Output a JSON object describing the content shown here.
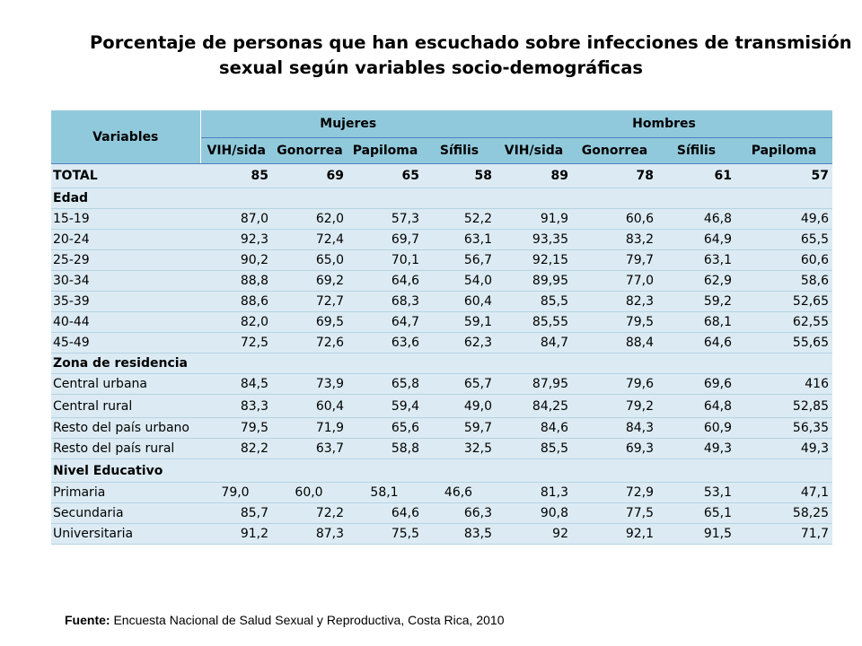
{
  "title": {
    "line1": "Porcentaje de personas que han escuchado sobre infecciones de transmisión",
    "line2": "sexual según variables socio-demográficas"
  },
  "table": {
    "variables_header": "Variables",
    "group_headers": [
      "Mujeres",
      "Hombres"
    ],
    "columns": [
      "VIH/sida",
      "Gonorrea",
      "Papiloma",
      "Sífilis",
      "VIH/sida",
      "Gonorrea",
      "Sífilis",
      "Papiloma"
    ],
    "total": {
      "label": "TOTAL",
      "values": [
        "85",
        "69",
        "65",
        "58",
        "89",
        "78",
        "61",
        "57"
      ]
    },
    "sections": [
      {
        "heading": "Edad",
        "rows": [
          {
            "label": "15-19",
            "values": [
              "87,0",
              "62,0",
              "57,3",
              "52,2",
              "91,9",
              "60,6",
              "46,8",
              "49,6"
            ]
          },
          {
            "label": "20-24",
            "values": [
              "92,3",
              "72,4",
              "69,7",
              "63,1",
              "93,35",
              "83,2",
              "64,9",
              "65,5"
            ]
          },
          {
            "label": "25-29",
            "values": [
              "90,2",
              "65,0",
              "70,1",
              "56,7",
              "92,15",
              "79,7",
              "63,1",
              "60,6"
            ]
          },
          {
            "label": "30-34",
            "values": [
              "88,8",
              "69,2",
              "64,6",
              "54,0",
              "89,95",
              "77,0",
              "62,9",
              "58,6"
            ]
          },
          {
            "label": "35-39",
            "values": [
              "88,6",
              "72,7",
              "68,3",
              "60,4",
              "85,5",
              "82,3",
              "59,2",
              "52,65"
            ]
          },
          {
            "label": "40-44",
            "values": [
              "82,0",
              "69,5",
              "64,7",
              "59,1",
              "85,55",
              "79,5",
              "68,1",
              "62,55"
            ]
          },
          {
            "label": "45-49",
            "values": [
              "72,5",
              "72,6",
              "63,6",
              "62,3",
              "84,7",
              "88,4",
              "64,6",
              "55,65"
            ]
          }
        ]
      },
      {
        "heading": "Zona de residencia",
        "rows": [
          {
            "label": "Central urbana",
            "values": [
              "84,5",
              "73,9",
              "65,8",
              "65,7",
              "87,95",
              "79,6",
              "69,6",
              "416"
            ]
          },
          {
            "label": "Central rural",
            "values": [
              "83,3",
              "60,4",
              "59,4",
              "49,0",
              "84,25",
              "79,2",
              "64,8",
              "52,85"
            ]
          },
          {
            "label": "Resto del país urbano",
            "values": [
              "79,5",
              "71,9",
              "65,6",
              "59,7",
              "84,6",
              "84,3",
              "60,9",
              "56,35"
            ]
          },
          {
            "label": "Resto del país rural",
            "values": [
              "82,2",
              "63,7",
              "58,8",
              "32,5",
              "85,5",
              "69,3",
              "49,3",
              "49,3"
            ]
          }
        ]
      },
      {
        "heading": "Nivel Educativo",
        "rows": [
          {
            "label": "Primaria",
            "values": [
              "79,0",
              "60,0",
              "58,1",
              "46,6",
              "81,3",
              "72,9",
              "53,1",
              "47,1"
            ]
          },
          {
            "label": "Secundaria",
            "values": [
              "85,7",
              "72,2",
              "64,6",
              "66,3",
              "90,8",
              "77,5",
              "65,1",
              "58,25"
            ]
          },
          {
            "label": "Universitaria",
            "values": [
              "91,2",
              "87,3",
              "75,5",
              "83,5",
              "92",
              "92,1",
              "91,5",
              "71,7"
            ]
          }
        ]
      }
    ]
  },
  "source": {
    "label": "Fuente:",
    "text": " Encuesta Nacional de Salud Sexual y Reproductiva, Costa Rica, 2010"
  },
  "colors": {
    "header_bg": "#91c9dc",
    "body_bg": "#dcebf3"
  }
}
